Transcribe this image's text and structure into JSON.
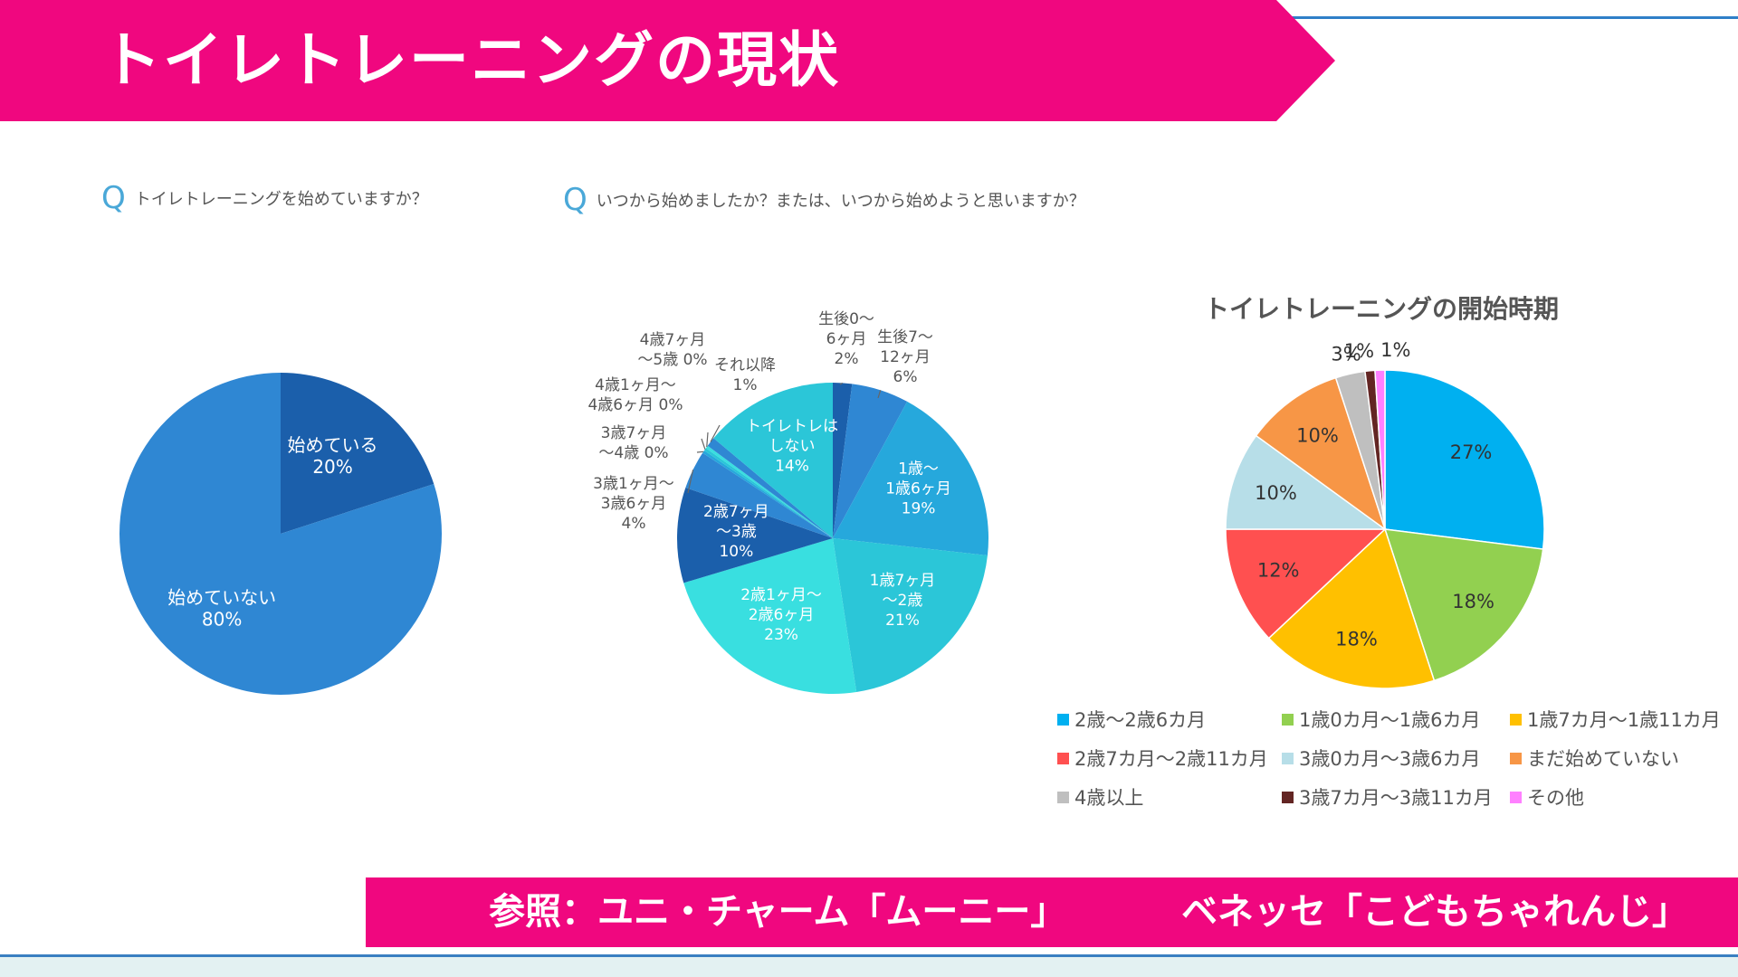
{
  "header": {
    "title": "トイレトレーニングの現状",
    "bg_color": "#f0077f"
  },
  "q1": {
    "icon": "q-icon",
    "icon_char": "Q",
    "text": "トイレトレーニングを始めていますか？"
  },
  "q2": {
    "icon": "q-icon",
    "icon_char": "Q",
    "text": "いつから始めましたか？または、いつから始めようと思いますか？"
  },
  "chart3_title": "トイレトレーニングの開始時期",
  "chart_data": [
    {
      "type": "pie",
      "title": "",
      "slices": [
        {
          "label": "始めている",
          "value": 20,
          "value_text": "20%",
          "color": "#1b5fab"
        },
        {
          "label": "始めていない",
          "value": 80,
          "value_text": "80%",
          "color": "#2f87d3"
        }
      ]
    },
    {
      "type": "pie",
      "title": "",
      "slices": [
        {
          "label": "生後0〜6ヶ月",
          "lines": [
            "生後0〜",
            "6ヶ月",
            "2%"
          ],
          "value": 2,
          "color": "#1b5fab"
        },
        {
          "label": "生後7〜12ヶ月",
          "lines": [
            "生後7〜",
            "12ヶ月",
            "6%"
          ],
          "value": 6,
          "color": "#2f87d3"
        },
        {
          "label": "1歳〜1歳6ヶ月",
          "lines": [
            "1歳〜",
            "1歳6ヶ月",
            "19%"
          ],
          "value": 19,
          "color": "#26a8dc"
        },
        {
          "label": "1歳7ヶ月〜2歳",
          "lines": [
            "1歳7ヶ月",
            "〜2歳",
            "21%"
          ],
          "value": 21,
          "color": "#2bc6d8"
        },
        {
          "label": "2歳1ヶ月〜2歳6ヶ月",
          "lines": [
            "2歳1ヶ月〜",
            "2歳6ヶ月",
            "23%"
          ],
          "value": 23,
          "color": "#39dfe0"
        },
        {
          "label": "2歳7ヶ月〜3歳",
          "lines": [
            "2歳7ヶ月",
            "〜3歳",
            "10%"
          ],
          "value": 10,
          "color": "#1b5fab"
        },
        {
          "label": "3歳1ヶ月〜3歳6ヶ月",
          "lines": [
            "3歳1ヶ月〜",
            "3歳6ヶ月",
            "4%"
          ],
          "value": 4,
          "color": "#2f87d3"
        },
        {
          "label": "3歳7ヶ月〜4歳",
          "lines": [
            "3歳7ヶ月",
            "〜4歳 0%"
          ],
          "value": 0.3,
          "color": "#26a8dc"
        },
        {
          "label": "4歳1ヶ月〜4歳6ヶ月",
          "lines": [
            "4歳1ヶ月〜",
            "4歳6ヶ月 0%"
          ],
          "value": 0.3,
          "color": "#2bc6d8"
        },
        {
          "label": "4歳7ヶ月〜5歳",
          "lines": [
            "4歳7ヶ月",
            "〜5歳 0%"
          ],
          "value": 0.3,
          "color": "#39dfe0"
        },
        {
          "label": "それ以降",
          "lines": [
            "それ以降",
            "1%"
          ],
          "value": 1,
          "color": "#2f87d3"
        },
        {
          "label": "トイレトレはしない",
          "lines": [
            "トイレトレは",
            "しない",
            "14%"
          ],
          "value": 14,
          "color": "#2bc6d8"
        }
      ]
    },
    {
      "type": "pie",
      "title": "トイレトレーニングの開始時期",
      "slices": [
        {
          "label": "2歳〜2歳6カ月",
          "value": 27,
          "value_text": "27%",
          "color": "#00b0f0"
        },
        {
          "label": "1歳0カ月〜1歳6カ月",
          "value": 18,
          "value_text": "18%",
          "color": "#92d050"
        },
        {
          "label": "1歳7カ月〜1歳11カ月",
          "value": 18,
          "value_text": "18%",
          "color": "#ffc000"
        },
        {
          "label": "2歳7カ月〜2歳11カ月",
          "value": 12,
          "value_text": "12%",
          "color": "#ff5050"
        },
        {
          "label": "3歳0カ月〜3歳6カ月",
          "value": 10,
          "value_text": "10%",
          "color": "#b7dee8"
        },
        {
          "label": "まだ始めていない",
          "value": 10,
          "value_text": "10%",
          "color": "#f79646"
        },
        {
          "label": "4歳以上",
          "value": 3,
          "value_text": "3%",
          "color": "#bfbfbf"
        },
        {
          "label": "3歳7カ月〜3歳11カ月",
          "value": 1,
          "value_text": "1%",
          "color": "#632523"
        },
        {
          "label": "その他",
          "value": 1,
          "value_text": "1%",
          "color": "#ff80ff"
        }
      ]
    }
  ],
  "legend": [
    {
      "label": "2歳〜2歳6カ月",
      "color": "#00b0f0"
    },
    {
      "label": "1歳0カ月〜1歳6カ月",
      "color": "#92d050"
    },
    {
      "label": "1歳7カ月〜1歳11カ月",
      "color": "#ffc000"
    },
    {
      "label": "2歳7カ月〜2歳11カ月",
      "color": "#ff5050"
    },
    {
      "label": "3歳0カ月〜3歳6カ月",
      "color": "#b7dee8"
    },
    {
      "label": "まだ始めていない",
      "color": "#f79646"
    },
    {
      "label": "4歳以上",
      "color": "#bfbfbf"
    },
    {
      "label": "3歳7カ月〜3歳11カ月",
      "color": "#632523"
    },
    {
      "label": "その他",
      "color": "#ff80ff"
    }
  ],
  "footer": {
    "left": "参照：ユニ・チャーム「ムーニー」",
    "right": "ベネッセ「こどもちゃれんじ」",
    "bg_color": "#f0077f"
  }
}
